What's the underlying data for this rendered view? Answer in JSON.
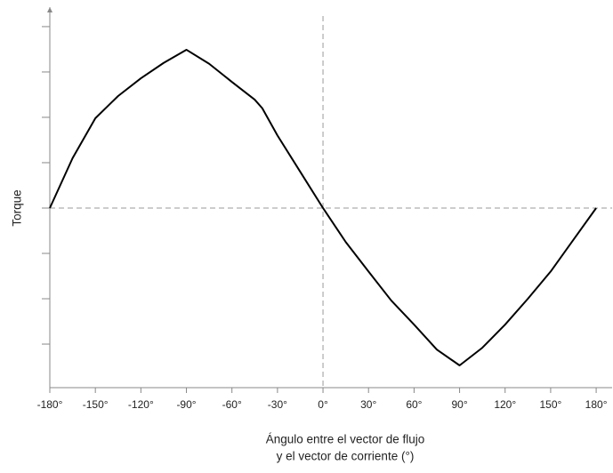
{
  "chart_data": {
    "type": "line",
    "xlabel": [
      "Ángulo entre el vector de flujo",
      "y el vector de corriente (°)"
    ],
    "ylabel": "Torque",
    "x": [
      -180,
      -165,
      -150,
      -135,
      -120,
      -105,
      -90,
      -75,
      -60,
      -45,
      -40,
      -30,
      -15,
      0,
      15,
      30,
      45,
      60,
      75,
      90,
      105,
      120,
      135,
      150,
      165,
      180
    ],
    "series": [
      {
        "name": "Torque",
        "color": "#000000",
        "values": [
          0,
          1.1,
          1.98,
          2.47,
          2.86,
          3.2,
          3.49,
          3.18,
          2.78,
          2.39,
          2.2,
          1.6,
          0.8,
          0,
          -0.75,
          -1.4,
          -2.04,
          -2.57,
          -3.12,
          -3.47,
          -3.08,
          -2.57,
          -2.0,
          -1.4,
          -0.7,
          0
        ]
      }
    ],
    "xlim": [
      -180,
      190.5
    ],
    "xticks": [
      {
        "value": -180,
        "label": "-180°"
      },
      {
        "value": -150,
        "label": "-150°"
      },
      {
        "value": -120,
        "label": "-120°"
      },
      {
        "value": -90,
        "label": "-90°"
      },
      {
        "value": -60,
        "label": "-60°"
      },
      {
        "value": -30,
        "label": "-30°"
      },
      {
        "value": 0,
        "label": "0°"
      },
      {
        "value": 30,
        "label": "30°"
      },
      {
        "value": 60,
        "label": "60°"
      },
      {
        "value": 90,
        "label": "90°"
      },
      {
        "value": 120,
        "label": "120°"
      },
      {
        "value": 150,
        "label": "150°"
      },
      {
        "value": 180,
        "label": "180°"
      }
    ],
    "ylim": [
      -3.96,
      4.43
    ],
    "yticks": [
      -3,
      -2,
      -1,
      0,
      1,
      2,
      3,
      4
    ]
  }
}
